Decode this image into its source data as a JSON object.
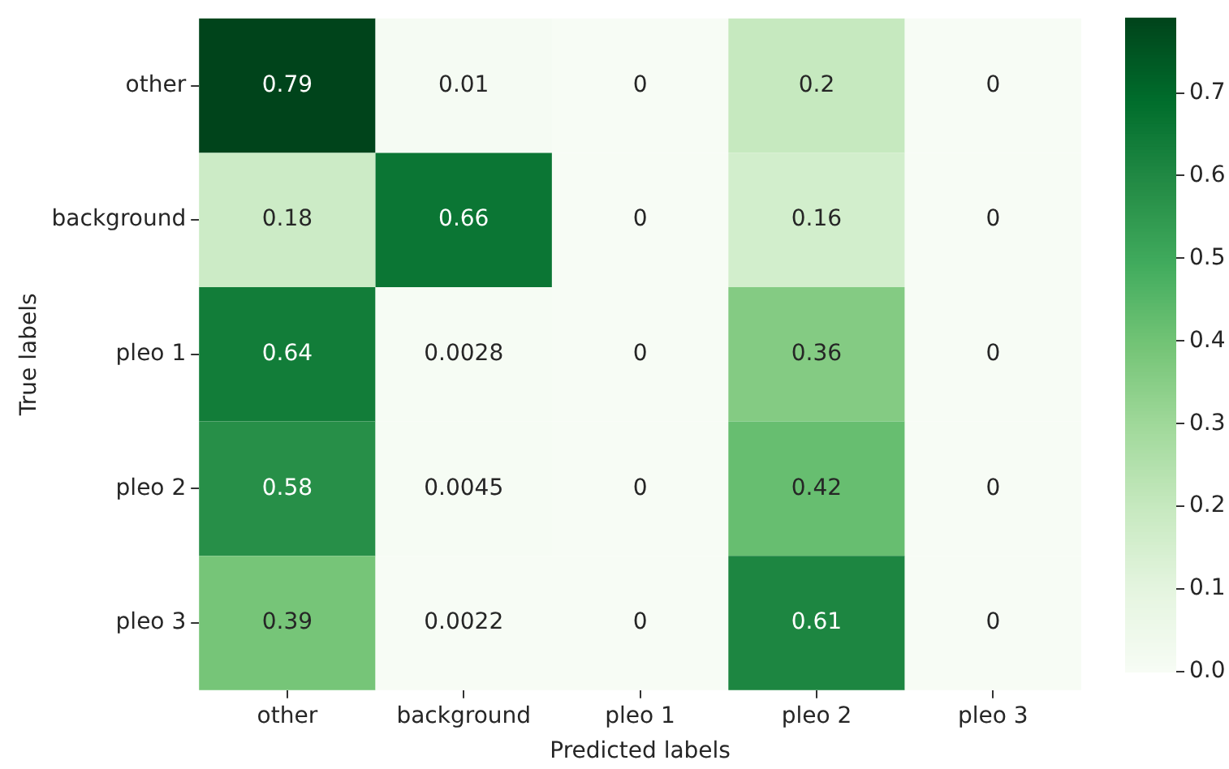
{
  "chart_data": {
    "type": "heatmap",
    "xlabel": "Predicted labels",
    "ylabel": "True labels",
    "categories": [
      "other",
      "background",
      "pleo 1",
      "pleo 2",
      "pleo 3"
    ],
    "y_categories": [
      "other",
      "background",
      "pleo 1",
      "pleo 2",
      "pleo 3"
    ],
    "cells": [
      [
        0.79,
        0.01,
        0,
        0.2,
        0
      ],
      [
        0.18,
        0.66,
        0,
        0.16,
        0
      ],
      [
        0.64,
        0.0028,
        0,
        0.36,
        0
      ],
      [
        0.58,
        0.0045,
        0,
        0.42,
        0
      ],
      [
        0.39,
        0.0022,
        0,
        0.61,
        0
      ]
    ],
    "cell_labels": [
      [
        "0.79",
        "0.01",
        "0",
        "0.2",
        "0"
      ],
      [
        "0.18",
        "0.66",
        "0",
        "0.16",
        "0"
      ],
      [
        "0.64",
        "0.0028",
        "0",
        "0.36",
        "0"
      ],
      [
        "0.58",
        "0.0045",
        "0",
        "0.42",
        "0"
      ],
      [
        "0.39",
        "0.0022",
        "0",
        "0.61",
        "0"
      ]
    ],
    "clim": [
      0,
      0.79
    ],
    "cticks": [
      {
        "value": 0,
        "label": "0.0"
      },
      {
        "value": 0.1,
        "label": "0.1"
      },
      {
        "value": 0.2,
        "label": "0.2"
      },
      {
        "value": 0.3,
        "label": "0.3"
      },
      {
        "value": 0.4,
        "label": "0.4"
      },
      {
        "value": 0.5,
        "label": "0.5"
      },
      {
        "value": 0.6,
        "label": "0.6"
      },
      {
        "value": 0.7,
        "label": "0.7"
      }
    ]
  }
}
